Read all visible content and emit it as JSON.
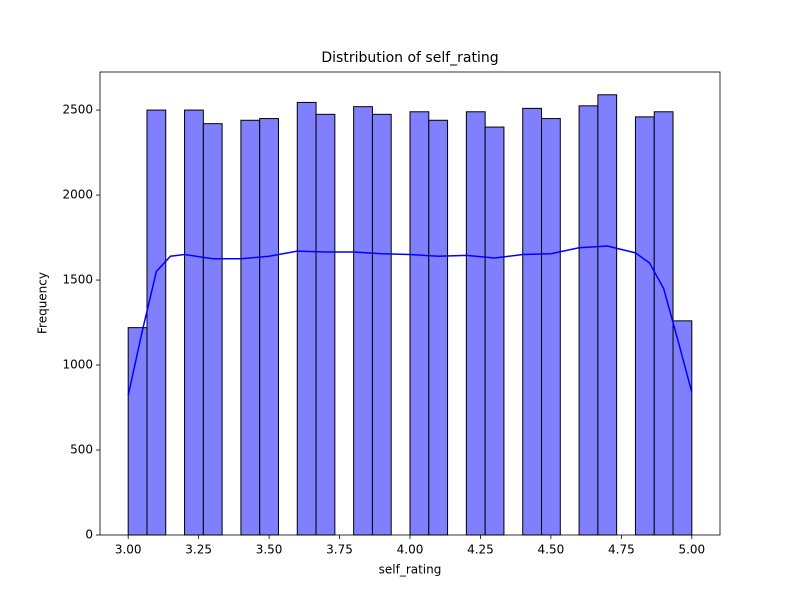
{
  "chart_data": {
    "type": "histogram",
    "title": "Distribution of self_rating",
    "x_label": "self_rating",
    "y_label": "Frequency",
    "bins": [
      3,
      3.0667,
      3.1333,
      3.2,
      3.2667,
      3.3333,
      3.4,
      3.4667,
      3.5333,
      3.6,
      3.6667,
      3.7333,
      3.8,
      3.8667,
      3.9333,
      4,
      4.0667,
      4.1333,
      4.2,
      4.2667,
      4.3333,
      4.4,
      4.4667,
      4.5333,
      4.6,
      4.6667,
      4.7333,
      4.8,
      4.8667,
      4.9333,
      5
    ],
    "counts": [
      1220,
      2500,
      0,
      2500,
      2420,
      0,
      2440,
      2450,
      0,
      2545,
      2475,
      0,
      2520,
      2475,
      0,
      2490,
      2440,
      0,
      2490,
      2400,
      0,
      2510,
      2450,
      0,
      2525,
      2590,
      0,
      2460,
      2490,
      1260
    ],
    "color": "#8080ff",
    "edge_color": "#000000",
    "kde": {
      "color": "#0000ff",
      "x": [
        3.0,
        3.05,
        3.1,
        3.15,
        3.2,
        3.3,
        3.4,
        3.5,
        3.6,
        3.7,
        3.8,
        3.9,
        4.0,
        4.1,
        4.2,
        4.3,
        4.4,
        4.5,
        4.6,
        4.7,
        4.8,
        4.85,
        4.9,
        4.95,
        5.0
      ],
      "y": [
        820,
        1200,
        1550,
        1640,
        1650,
        1625,
        1625,
        1640,
        1670,
        1665,
        1665,
        1655,
        1650,
        1640,
        1645,
        1630,
        1650,
        1655,
        1690,
        1700,
        1660,
        1600,
        1450,
        1150,
        840
      ]
    },
    "xlim": [
      2.9,
      5.1
    ],
    "ylim": [
      0,
      2724
    ],
    "xticks": [
      {
        "value": 3,
        "label": "3.00"
      },
      {
        "value": 3.25,
        "label": "3.25"
      },
      {
        "value": 3.5,
        "label": "3.50"
      },
      {
        "value": 3.75,
        "label": "3.75"
      },
      {
        "value": 4,
        "label": "4.00"
      },
      {
        "value": 4.25,
        "label": "4.25"
      },
      {
        "value": 4.5,
        "label": "4.50"
      },
      {
        "value": 4.75,
        "label": "4.75"
      },
      {
        "value": 5,
        "label": "5.00"
      }
    ],
    "yticks": [
      0,
      500,
      1000,
      1500,
      2000,
      2500
    ]
  }
}
